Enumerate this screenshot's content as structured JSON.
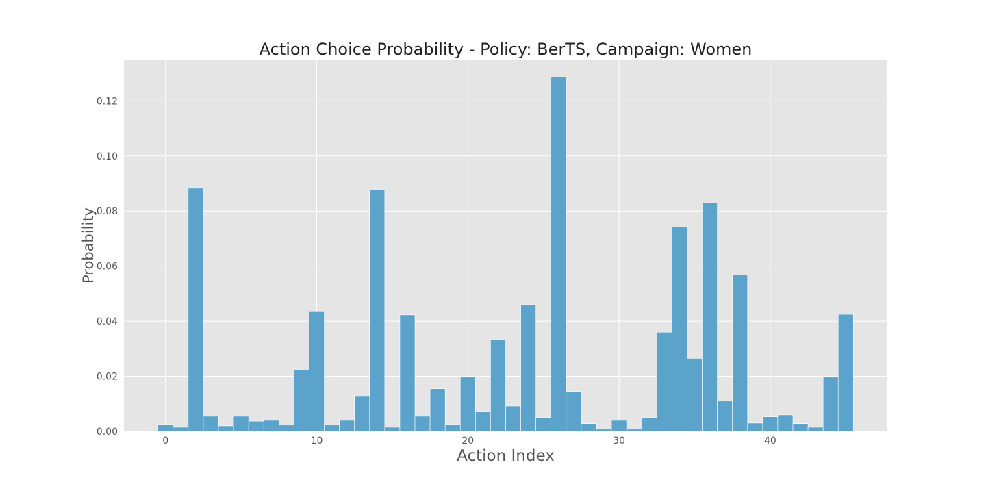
{
  "chart_data": {
    "type": "bar",
    "title": "Action Choice Probability - Policy: BerTS, Campaign: Women",
    "xlabel": "Action Index",
    "ylabel": "Probability",
    "x": [
      0,
      1,
      2,
      3,
      4,
      5,
      6,
      7,
      8,
      9,
      10,
      11,
      12,
      13,
      14,
      15,
      16,
      17,
      18,
      19,
      20,
      21,
      22,
      23,
      24,
      25,
      26,
      27,
      28,
      29,
      30,
      31,
      32,
      33,
      34,
      35,
      36,
      37,
      38,
      39,
      40,
      41,
      42,
      43,
      44,
      45
    ],
    "values": [
      0.0025,
      0.0015,
      0.0883,
      0.0055,
      0.002,
      0.0055,
      0.0037,
      0.004,
      0.0023,
      0.0225,
      0.0437,
      0.0023,
      0.004,
      0.0127,
      0.0877,
      0.0015,
      0.0423,
      0.0055,
      0.0155,
      0.0025,
      0.0197,
      0.0073,
      0.0333,
      0.0092,
      0.046,
      0.005,
      0.1287,
      0.0145,
      0.0028,
      0.0008,
      0.004,
      0.0008,
      0.005,
      0.036,
      0.0742,
      0.0265,
      0.083,
      0.011,
      0.0568,
      0.003,
      0.0053,
      0.006,
      0.0028,
      0.0015,
      0.0197,
      0.0425
    ],
    "xticks": [
      0,
      10,
      20,
      30,
      40
    ],
    "xtick_labels": [
      "0",
      "10",
      "20",
      "30",
      "40"
    ],
    "yticks": [
      0.0,
      0.02,
      0.04,
      0.06,
      0.08,
      0.1,
      0.12
    ],
    "ytick_labels": [
      "0.00",
      "0.02",
      "0.04",
      "0.06",
      "0.08",
      "0.10",
      "0.12"
    ],
    "xlim": [
      -2.75,
      47.75
    ],
    "ylim": [
      0,
      0.135
    ],
    "grid": true,
    "colors": {
      "bar": "#5ca3cb",
      "background": "#e5e5e5",
      "grid": "#ffffff"
    }
  }
}
